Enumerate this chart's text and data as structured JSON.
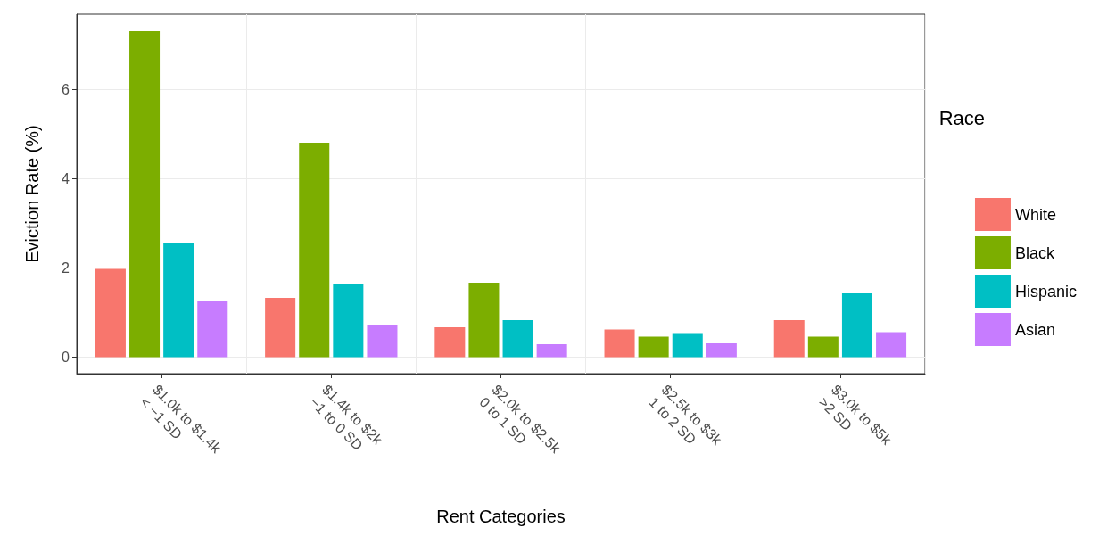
{
  "chart_data": {
    "type": "bar",
    "xlabel": "Rent Categories",
    "ylabel": "Eviction Rate (%)",
    "legend_title": "Race",
    "categories": [
      "$1.0k to $1.4k\n< −1 SD",
      "$1.4k to $2k\n−1 to 0 SD",
      "$2.0k to $2.5k\n0 to 1 SD",
      "$2.5k to $3k\n1 to 2 SD",
      "$3.0k to $5k\n>2 SD"
    ],
    "series": [
      {
        "name": "White",
        "color": "#f8766d",
        "values": [
          1.98,
          1.33,
          0.67,
          0.62,
          0.83
        ]
      },
      {
        "name": "Black",
        "color": "#7cae00",
        "values": [
          7.31,
          4.81,
          1.67,
          0.46,
          0.46
        ]
      },
      {
        "name": "Hispanic",
        "color": "#00bfc4",
        "values": [
          2.56,
          1.65,
          0.83,
          0.54,
          1.44
        ]
      },
      {
        "name": "Asian",
        "color": "#c77cff",
        "values": [
          1.27,
          0.73,
          0.29,
          0.31,
          0.56
        ]
      }
    ],
    "ylim": [
      -0.37,
      7.69
    ],
    "yticks": [
      0,
      2,
      4,
      6
    ],
    "grid": true,
    "legend": "right"
  }
}
